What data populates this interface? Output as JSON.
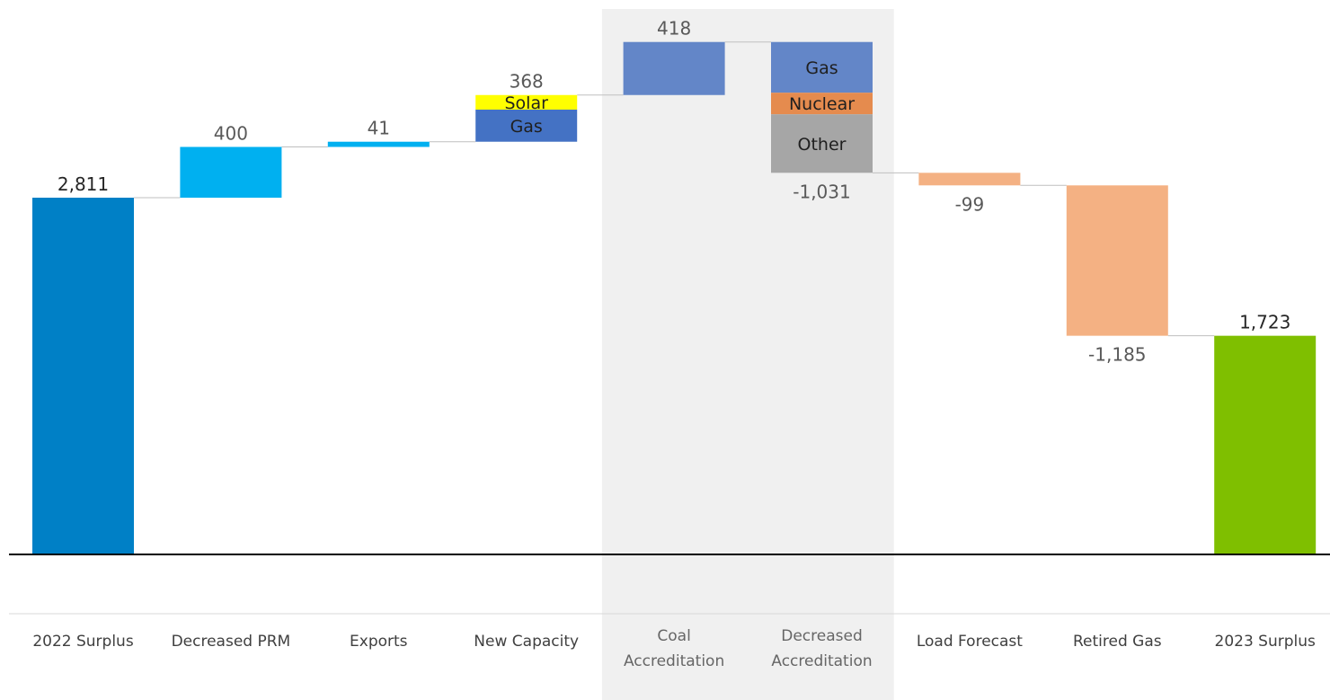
{
  "chart_data": {
    "type": "bar",
    "subtype": "waterfall",
    "title": "",
    "xlabel": "",
    "ylabel": "",
    "ylim": [
      0,
      4000
    ],
    "grid": false,
    "legend": "none",
    "highlighted_categories": [
      "Coal Accreditation",
      "Decreased Accreditation"
    ],
    "highlight_color": "#f0f0f0",
    "categories": [
      {
        "label": [
          "2022 Surplus"
        ],
        "value": 2811,
        "value_label": "2,811",
        "kind": "total",
        "color": "#0080c6",
        "label_pos": "above",
        "label_dark": true
      },
      {
        "label": [
          "Decreased PRM"
        ],
        "value": 400,
        "value_label": "400",
        "kind": "delta",
        "color": "#00b0f0",
        "label_pos": "above"
      },
      {
        "label": [
          "Exports"
        ],
        "value": 41,
        "value_label": "41",
        "kind": "delta",
        "color": "#00b0f0",
        "label_pos": "above"
      },
      {
        "label": [
          "New Capacity"
        ],
        "value": 368,
        "value_label": "368",
        "kind": "delta",
        "label_pos": "above",
        "segments": [
          {
            "name": "Gas",
            "value": 253,
            "color": "#4472c4"
          },
          {
            "name": "Solar",
            "value": 115,
            "color": "#ffff00"
          }
        ]
      },
      {
        "label": [
          "Coal",
          "Accreditation"
        ],
        "value": 418,
        "value_label": "418",
        "kind": "delta",
        "color": "#6386c8",
        "label_pos": "above",
        "dim": true
      },
      {
        "label": [
          "Decreased",
          "Accreditation"
        ],
        "value": -1031,
        "value_label": "-1,031",
        "kind": "delta",
        "label_pos": "below",
        "dim": true,
        "segments": [
          {
            "name": "Gas",
            "value": -400,
            "color": "#6386c8"
          },
          {
            "name": "Nuclear",
            "value": -170,
            "color": "#e58b4e"
          },
          {
            "name": "Other",
            "value": -461,
            "color": "#a6a6a6"
          }
        ]
      },
      {
        "label": [
          "Load Forecast"
        ],
        "value": -99,
        "value_label": "-99",
        "kind": "delta",
        "color": "#f4b183",
        "label_pos": "below"
      },
      {
        "label": [
          "Retired Gas"
        ],
        "value": -1185,
        "value_label": "-1,185",
        "kind": "delta",
        "color": "#f4b183",
        "label_pos": "below"
      },
      {
        "label": [
          "2023 Surplus"
        ],
        "value": 1723,
        "value_label": "1,723",
        "kind": "total",
        "color": "#7fbf00",
        "label_pos": "above",
        "label_dark": true
      }
    ]
  }
}
